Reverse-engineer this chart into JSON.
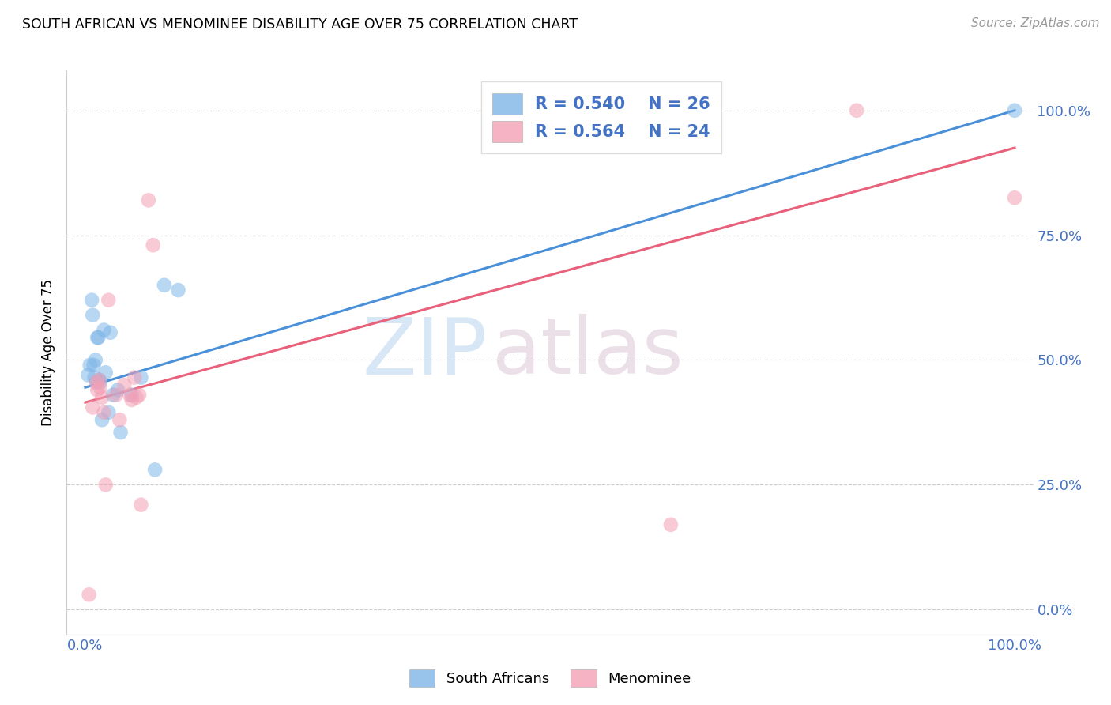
{
  "title": "SOUTH AFRICAN VS MENOMINEE DISABILITY AGE OVER 75 CORRELATION CHART",
  "source": "Source: ZipAtlas.com",
  "ylabel": "Disability Age Over 75",
  "legend_blue_r": "R = 0.540",
  "legend_blue_n": "N = 26",
  "legend_pink_r": "R = 0.564",
  "legend_pink_n": "N = 24",
  "legend_label_blue": "South Africans",
  "legend_label_pink": "Menominee",
  "xlim": [
    -0.02,
    1.02
  ],
  "ylim": [
    -0.05,
    1.08
  ],
  "ytick_values": [
    0.0,
    0.25,
    0.5,
    0.75,
    1.0
  ],
  "blue_color": "#7EB6E8",
  "pink_color": "#F4A0B5",
  "blue_line_color": "#4A90D9",
  "pink_line_color": "#E8607A",
  "watermark_zip": "ZIP",
  "watermark_atlas": "atlas",
  "blue_points_x": [
    0.003,
    0.005,
    0.007,
    0.008,
    0.009,
    0.01,
    0.011,
    0.012,
    0.013,
    0.014,
    0.015,
    0.016,
    0.018,
    0.02,
    0.022,
    0.025,
    0.027,
    0.03,
    0.035,
    0.038,
    0.05,
    0.06,
    0.075,
    0.085,
    0.1,
    1.0
  ],
  "blue_points_y": [
    0.47,
    0.49,
    0.62,
    0.59,
    0.49,
    0.465,
    0.5,
    0.455,
    0.545,
    0.545,
    0.46,
    0.455,
    0.38,
    0.56,
    0.475,
    0.395,
    0.555,
    0.43,
    0.44,
    0.355,
    0.43,
    0.465,
    0.28,
    0.65,
    0.64,
    1.0
  ],
  "pink_points_x": [
    0.004,
    0.008,
    0.012,
    0.013,
    0.015,
    0.016,
    0.018,
    0.02,
    0.022,
    0.025,
    0.033,
    0.037,
    0.042,
    0.048,
    0.05,
    0.053,
    0.055,
    0.058,
    0.06,
    0.068,
    0.073,
    0.63,
    0.83,
    1.0
  ],
  "pink_points_y": [
    0.03,
    0.405,
    0.455,
    0.44,
    0.46,
    0.445,
    0.425,
    0.395,
    0.25,
    0.62,
    0.43,
    0.38,
    0.45,
    0.43,
    0.42,
    0.465,
    0.425,
    0.43,
    0.21,
    0.82,
    0.73,
    0.17,
    1.0,
    0.825
  ],
  "blue_line_x0": 0.0,
  "blue_line_x1": 1.0,
  "blue_line_y0": 0.445,
  "blue_line_y1": 1.0,
  "pink_line_x0": 0.0,
  "pink_line_x1": 1.0,
  "pink_line_y0": 0.415,
  "pink_line_y1": 0.925
}
